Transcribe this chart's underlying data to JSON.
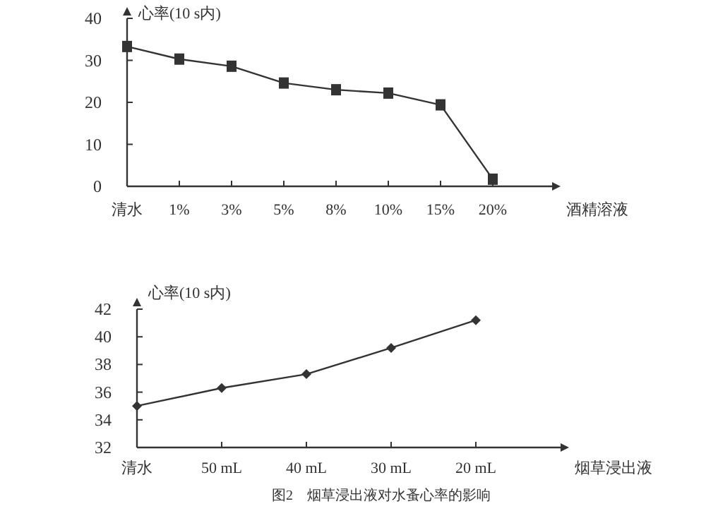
{
  "chart_data": [
    {
      "type": "line",
      "ylabel": "心率(10 s内)",
      "xlabel": "酒精溶液",
      "categories": [
        "清水",
        "1%",
        "3%",
        "5%",
        "8%",
        "10%",
        "15%",
        "20%"
      ],
      "series": [
        {
          "color": "#333333",
          "values": [
            33.3,
            30.3,
            28.6,
            24.6,
            23,
            22.2,
            19.4,
            1.7
          ]
        }
      ],
      "marker": "square",
      "ylim": [
        0,
        40
      ],
      "yticks": [
        0,
        10,
        20,
        30,
        40
      ]
    },
    {
      "type": "line",
      "ylabel": "心率(10 s内)",
      "xlabel": "烟草浸出液",
      "categories": [
        "清水",
        "50 mL",
        "40 mL",
        "30 mL",
        "20 mL"
      ],
      "series": [
        {
          "color": "#333333",
          "values": [
            35,
            36.3,
            37.3,
            39.2,
            41.2
          ]
        }
      ],
      "marker": "diamond",
      "ylim": [
        32,
        42
      ],
      "yticks": [
        32,
        34,
        36,
        38,
        40,
        42
      ],
      "annotations": [
        "图2　烟草浸出液对水蚤心率的影响"
      ]
    }
  ]
}
